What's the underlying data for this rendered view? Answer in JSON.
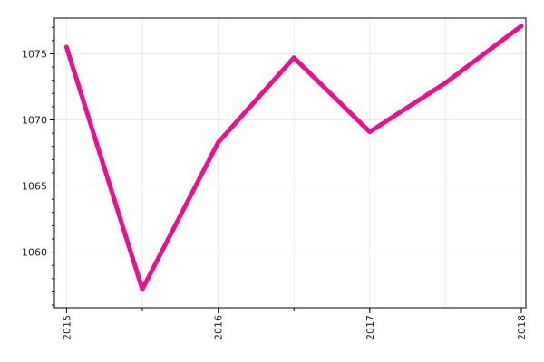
{
  "chart_data": {
    "type": "line",
    "title": "",
    "xlabel": "",
    "ylabel": "",
    "x": [
      2015.0,
      2015.5,
      2016.0,
      2016.5,
      2017.0,
      2017.5,
      2018.0
    ],
    "x_tick_values": [
      2015,
      2016,
      2017,
      2018
    ],
    "x_tick_labels": [
      "2015",
      "2016",
      "2017",
      "2018"
    ],
    "x_minor_ticks": [
      2015.5,
      2016.5,
      2017.0
    ],
    "xlim": [
      2014.92,
      2018.03
    ],
    "y_ticks": [
      1060,
      1065,
      1070,
      1075
    ],
    "ylim": [
      1055.8,
      1077.7
    ],
    "grid": true,
    "series": [
      {
        "values": [
          1075.5,
          1057.2,
          1068.3,
          1074.7,
          1069.1,
          1072.8,
          1077.1
        ],
        "color": "#e8118f"
      }
    ]
  }
}
